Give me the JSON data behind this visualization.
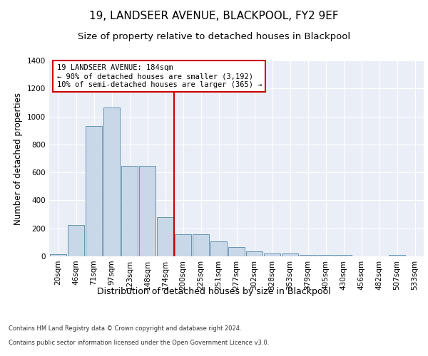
{
  "title": "19, LANDSEER AVENUE, BLACKPOOL, FY2 9EF",
  "subtitle": "Size of property relative to detached houses in Blackpool",
  "xlabel": "Distribution of detached houses by size in Blackpool",
  "ylabel": "Number of detached properties",
  "categories": [
    "20sqm",
    "46sqm",
    "71sqm",
    "97sqm",
    "123sqm",
    "148sqm",
    "174sqm",
    "200sqm",
    "225sqm",
    "251sqm",
    "277sqm",
    "302sqm",
    "328sqm",
    "353sqm",
    "379sqm",
    "405sqm",
    "430sqm",
    "456sqm",
    "482sqm",
    "507sqm",
    "533sqm"
  ],
  "values": [
    15,
    225,
    930,
    1065,
    645,
    645,
    280,
    160,
    160,
    105,
    65,
    35,
    20,
    20,
    10,
    10,
    10,
    0,
    0,
    10,
    0
  ],
  "bar_color": "#c8d8e8",
  "bar_edge_color": "#5588aa",
  "vline_color": "#cc0000",
  "annotation_text": "19 LANDSEER AVENUE: 184sqm\n← 90% of detached houses are smaller (3,192)\n10% of semi-detached houses are larger (365) →",
  "annotation_box_color": "#cc0000",
  "ylim": [
    0,
    1400
  ],
  "yticks": [
    0,
    200,
    400,
    600,
    800,
    1000,
    1200,
    1400
  ],
  "plot_bg_color": "#eaeff7",
  "footer_line1": "Contains HM Land Registry data © Crown copyright and database right 2024.",
  "footer_line2": "Contains public sector information licensed under the Open Government Licence v3.0.",
  "title_fontsize": 11,
  "subtitle_fontsize": 9.5,
  "tick_fontsize": 7.5,
  "ylabel_fontsize": 8.5,
  "xlabel_fontsize": 9,
  "annotation_fontsize": 7.5,
  "footer_fontsize": 6
}
